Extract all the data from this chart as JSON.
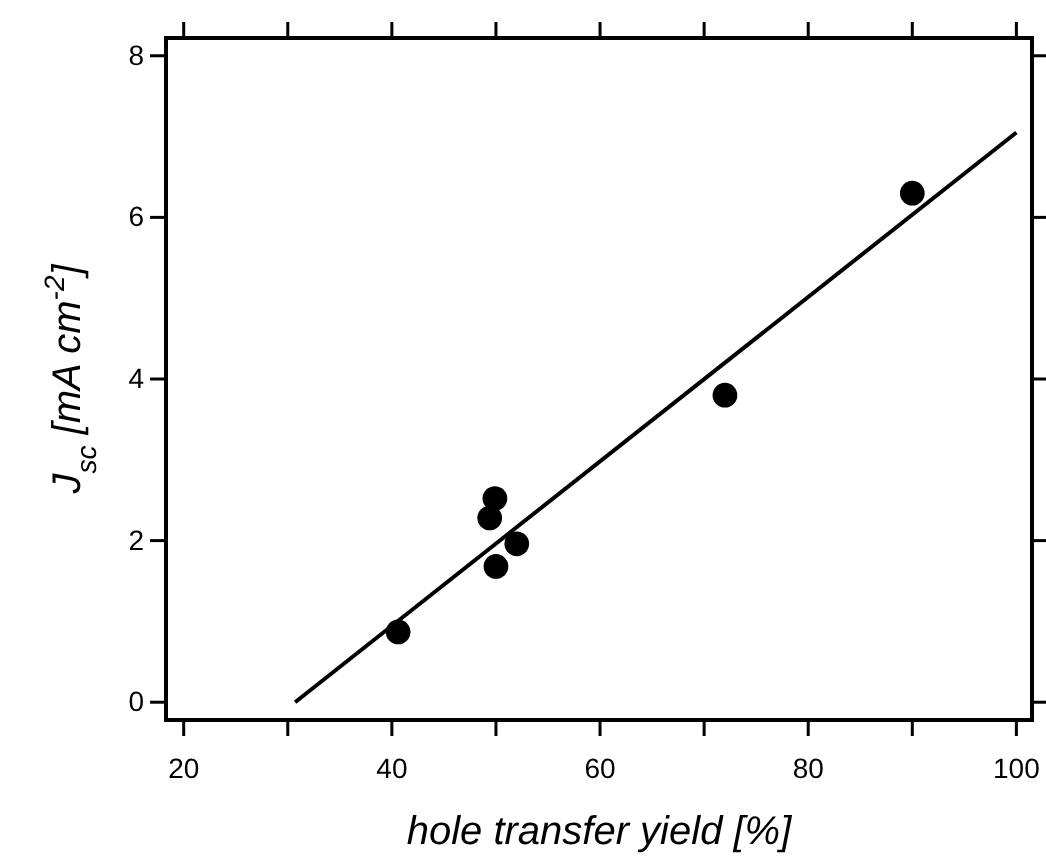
{
  "chart_data": {
    "type": "scatter",
    "xlabel": "hole transfer yield [%]",
    "ylabel": "J$_{sc}$ [mA cm$^{-2}$]",
    "x": [
      40.6,
      49.4,
      49.9,
      50,
      52,
      72,
      90
    ],
    "series": [
      {
        "color": "#000000",
        "marker": "circle",
        "values": [
          0.87,
          2.28,
          2.52,
          1.68,
          1.96,
          3.8,
          6.3
        ]
      },
      {
        "type": "line",
        "color": "#000000",
        "x": [
          30.7,
          100
        ],
        "values": [
          0,
          7.05
        ],
        "marker": "none",
        "line_style": "solid"
      }
    ],
    "xlim": [
      18.3,
      101.5
    ],
    "ylim": [
      -0.22,
      8.22
    ],
    "xticks": [
      20,
      {
        "value": 30,
        "label": null
      },
      40,
      {
        "value": 50,
        "label": null
      },
      60,
      {
        "value": 70,
        "label": null
      },
      80,
      {
        "value": 90,
        "label": null
      },
      100
    ],
    "yticks": [
      0,
      2,
      4,
      6,
      8
    ],
    "grid": false
  }
}
